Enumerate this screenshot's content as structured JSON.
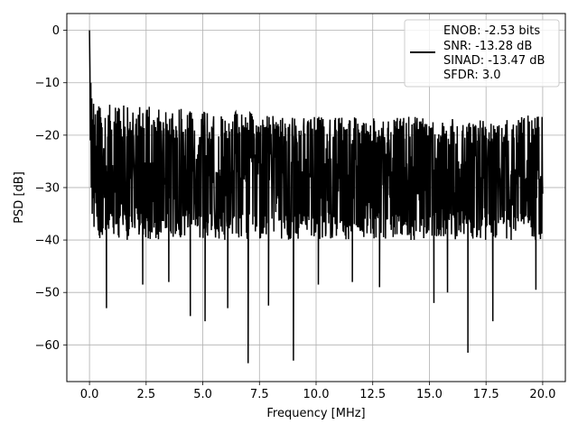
{
  "chart_data": {
    "type": "line",
    "title": "",
    "xlabel": "Frequency [MHz]",
    "ylabel": "PSD [dB]",
    "xlim": [
      -1.0,
      21.0
    ],
    "ylim": [
      -67.0,
      3.2
    ],
    "grid": true,
    "legend_placement": "top-right",
    "x_ticks": [
      {
        "value": 0.0,
        "label": "0.0"
      },
      {
        "value": 2.5,
        "label": "2.5"
      },
      {
        "value": 5.0,
        "label": "5.0"
      },
      {
        "value": 7.5,
        "label": "7.5"
      },
      {
        "value": 10.0,
        "label": "10.0"
      },
      {
        "value": 12.5,
        "label": "12.5"
      },
      {
        "value": 15.0,
        "label": "15.0"
      },
      {
        "value": 17.5,
        "label": "17.5"
      },
      {
        "value": 20.0,
        "label": "20.0"
      }
    ],
    "y_ticks": [
      {
        "value": 0,
        "label": "0"
      },
      {
        "value": -10,
        "label": "−10"
      },
      {
        "value": -20,
        "label": "−20"
      },
      {
        "value": -30,
        "label": "−30"
      },
      {
        "value": -40,
        "label": "−40"
      },
      {
        "value": -50,
        "label": "−50"
      },
      {
        "value": -60,
        "label": "−60"
      }
    ],
    "series": [
      {
        "name": "ENOB: -2.53 bits\nSNR: -13.28 dB\nSINAD: -13.47 dB\nSFDR: 3.0",
        "legend_lines": [
          "ENOB: -2.53 bits",
          "SNR: -13.28 dB",
          "SINAD: -13.47 dB",
          "SFDR: 3.0"
        ],
        "color": "#000000",
        "head": {
          "x": [
            0.0,
            0.02,
            0.04,
            0.06,
            0.08,
            0.1,
            0.12,
            0.14,
            0.16,
            0.18,
            0.2,
            0.22,
            0.24,
            0.26,
            0.28,
            0.3
          ],
          "y": [
            0.0,
            -7.5,
            -21.0,
            -10.0,
            -30.0,
            -13.0,
            -35.0,
            -17.0,
            -32.0,
            -14.0,
            -37.5,
            -18.0,
            -31.0,
            -16.0,
            -33.0,
            -22.0
          ]
        },
        "envelope": {
          "x": [
            0.3,
            1.0,
            2.5,
            5.0,
            7.5,
            10.0,
            12.5,
            15.0,
            17.5,
            20.0
          ],
          "upper": [
            -14.0,
            -14.0,
            -14.5,
            -15.0,
            -15.5,
            -16.5,
            -16.5,
            -16.5,
            -17.0,
            -16.0
          ],
          "lower": [
            -45.0,
            -48.0,
            -49.0,
            -55.5,
            -64.0,
            -63.0,
            -51.0,
            -52.0,
            -61.5,
            -50.0
          ],
          "mean": -28.0
        },
        "spikes": [
          {
            "x": 0.75,
            "y": -53.0
          },
          {
            "x": 2.35,
            "y": -48.5
          },
          {
            "x": 3.5,
            "y": -48.0
          },
          {
            "x": 4.45,
            "y": -54.5
          },
          {
            "x": 5.1,
            "y": -55.5
          },
          {
            "x": 6.1,
            "y": -53.0
          },
          {
            "x": 7.0,
            "y": -63.5
          },
          {
            "x": 7.9,
            "y": -52.5
          },
          {
            "x": 9.0,
            "y": -63.0
          },
          {
            "x": 10.1,
            "y": -48.5
          },
          {
            "x": 11.6,
            "y": -48.0
          },
          {
            "x": 12.8,
            "y": -49.0
          },
          {
            "x": 15.2,
            "y": -52.0
          },
          {
            "x": 15.8,
            "y": -50.0
          },
          {
            "x": 16.7,
            "y": -61.5
          },
          {
            "x": 17.8,
            "y": -55.5
          },
          {
            "x": 19.7,
            "y": -49.5
          }
        ]
      }
    ]
  }
}
